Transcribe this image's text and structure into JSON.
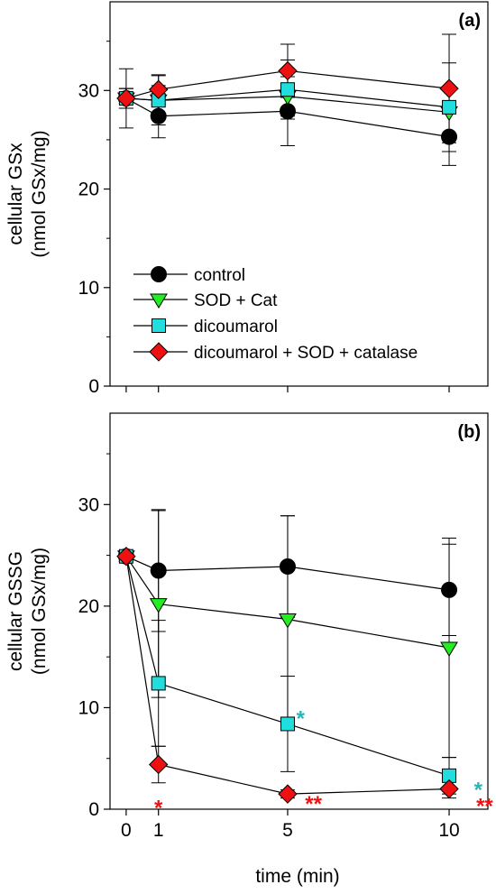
{
  "figure": {
    "xlabel": "time (min)"
  },
  "chart_data": [
    {
      "type": "line",
      "panel_label": "(a)",
      "ylabel_line1": "cellular GSx",
      "ylabel_line2": "(nmol GSx/mg)",
      "x_ticks": [
        "0",
        "1",
        "5",
        "10"
      ],
      "y_ticks": [
        "0",
        "10",
        "20",
        "30"
      ],
      "xlim": [
        -0.5,
        11.2
      ],
      "ylim": [
        0,
        39
      ],
      "grid": false,
      "legend_position": "bottom-left",
      "series": [
        {
          "name": "control",
          "color": "#000000",
          "marker": "circle",
          "x": [
            0,
            1,
            5,
            10
          ],
          "y": [
            29.2,
            27.4,
            27.9,
            25.3
          ],
          "err": [
            1.0,
            2.2,
            3.5,
            2.9
          ]
        },
        {
          "name": "SOD + Cat",
          "color": "#22ee22",
          "marker": "triangle-down",
          "x": [
            0,
            1,
            5,
            10
          ],
          "y": [
            29.2,
            29.0,
            29.4,
            27.8
          ],
          "err": [
            1.0,
            1.5,
            2.0,
            2.5
          ]
        },
        {
          "name": "dicoumarol",
          "color": "#22dddd",
          "marker": "square",
          "x": [
            0,
            1,
            5,
            10
          ],
          "y": [
            29.2,
            29.0,
            30.1,
            28.3
          ],
          "err": [
            3.0,
            2.5,
            3.0,
            4.5
          ]
        },
        {
          "name": "dicoumarol + SOD + catalase",
          "color": "#ee1111",
          "marker": "diamond",
          "x": [
            0,
            1,
            5,
            10
          ],
          "y": [
            29.2,
            30.1,
            32.0,
            30.2
          ],
          "err": [
            1.0,
            1.5,
            2.7,
            5.5
          ]
        }
      ],
      "annotations": []
    },
    {
      "type": "line",
      "panel_label": "(b)",
      "ylabel_line1": "cellular GSSG",
      "ylabel_line2": "(nmol GSx/mg)",
      "x_ticks": [
        "0",
        "1",
        "5",
        "10"
      ],
      "y_ticks": [
        "0",
        "10",
        "20",
        "30"
      ],
      "xlim": [
        -0.5,
        11.2
      ],
      "ylim": [
        0,
        39
      ],
      "grid": false,
      "series": [
        {
          "name": "control",
          "color": "#000000",
          "marker": "circle",
          "x": [
            0,
            1,
            5,
            10
          ],
          "y": [
            24.9,
            23.5,
            23.9,
            21.6
          ],
          "err": [
            0.5,
            6.0,
            5.0,
            4.5
          ]
        },
        {
          "name": "SOD + Cat",
          "color": "#22ee22",
          "marker": "triangle-down",
          "x": [
            0,
            1,
            5,
            10
          ],
          "y": [
            24.9,
            20.2,
            18.7,
            15.9
          ],
          "err": [
            0.5,
            9.2,
            10.2,
            10.8
          ]
        },
        {
          "name": "dicoumarol",
          "color": "#22dddd",
          "marker": "square",
          "x": [
            0,
            1,
            5,
            10
          ],
          "y": [
            24.9,
            12.4,
            8.4,
            3.3
          ],
          "err": [
            0.5,
            6.2,
            4.7,
            1.8
          ]
        },
        {
          "name": "dicoumarol + SOD + catalase",
          "color": "#ee1111",
          "marker": "diamond",
          "x": [
            0,
            1,
            5,
            10
          ],
          "y": [
            24.9,
            4.4,
            1.5,
            2.0
          ],
          "err": [
            0.5,
            1.8,
            0.4,
            0.9
          ]
        }
      ],
      "annotations": [
        {
          "text": "*",
          "color": "#2ab5b5",
          "x": 5.4,
          "y": 9.1
        },
        {
          "text": "**",
          "color": "#ee1111",
          "x": 5.8,
          "y": 0.7
        },
        {
          "text": "*",
          "color": "#ee1111",
          "x": 1.0,
          "y": 0.3
        },
        {
          "text": "*",
          "color": "#2ab5b5",
          "x": 10.9,
          "y": 2.1
        },
        {
          "text": "**",
          "color": "#ee1111",
          "x": 11.1,
          "y": 0.5
        }
      ]
    }
  ]
}
